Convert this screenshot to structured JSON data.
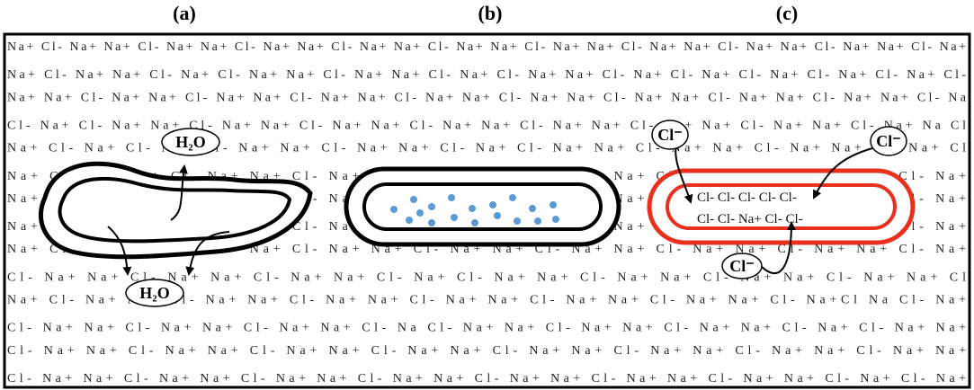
{
  "panels": [
    {
      "label": "(a)",
      "water_in": "H₂O",
      "water_out": "H₂O"
    },
    {
      "label": "(b)"
    },
    {
      "label": "(c)",
      "ions": [
        "Cl⁻",
        "Cl⁻",
        "Cl⁻"
      ],
      "inside": [
        "Cl-  Cl-     Cl-      Cl-  Cl-",
        "Cl-  Cl-      Na+     Cl-  Cl-"
      ]
    }
  ],
  "background": {
    "rows": [
      "Na+ Cl- Na+ Na+ Cl- Na+ Na+ Cl- Na+ Na+ Cl- Na+ Na+ Cl- Na+ Na+ Cl- Na+ Na+ Cl- Na+ Na+ Cl- Na+ Na+ Cl- Na+ Na+ Cl- Na+",
      "Na+ Cl- Na+ Na+ Cl- Na+ Cl- Na+ Na+ Cl- Na+ Na+ Cl- Na+ Cl- Na+ Na+ Cl- Na+ Cl- Na+ Cl- Na+ Cl- Na+ Cl- Na+ Cl-",
      "Na+ Na+ Cl- Na+ Na+ Cl- Na+ Na+ Cl- Na+ Na+ Cl- Na+ Na+ Cl- Na+ Na+ Cl- Na+ Na+ Cl- Na+ Na+ Cl- Na+ Na+ Cl- Na",
      "Cl- Na+ Cl- Na+ Na+ Cl- Na+ Na+ Cl- Na+ Na+ Cl- Na+ Na+ Cl- Na+ Na+ Cl- Na+ Na+ Cl- Na+ Na+ Cl- Na+ Na Cl",
      "Na+ Cl- Na+ Cl- Na+ Cl- Na+ Na+ Cl- Na+ Na+ Cl- Na+ Cl- Na+ Na+ Cl- Na+ Na+ Cl- Na+ Na+ Cl- Na+ Cl",
      "Na+ Cl- Na+ Na+ Cl- Na+ Na+ Cl- Na+ Na+ Cl- Na+ Na+ Cl- Na+ Na+ Cl- Na+ Na+ Cl- Na+ Na+ Cl- Na+",
      "Na+ Cl- Na+ Na+ Cl- Na+ Na+ Cl- Na+ Na+ Cl- Na+ Na+ Cl- Na+ Na+ Cl- Na+ Na+ Cl- Na+ Na+ Cl- Na+",
      "Na+ Cl- Na+ Na+ Cl- Na+ Na+ Cl- Na+ Na+ Cl- Na+ Na+ Cl- Na+ Na+ Cl- Na+ Na+ Cl- Na+ Na+ Cl- Na+",
      "Na+ Cl- Na+ Na+ Cl- Na+ Na+ Cl- Na+ Na+ Cl- Na+ Na+ Cl- Na+ Na+ Cl- Na+ Na+ Cl- Na+ Na+ Cl- Na+",
      "Cl- Na+ Na+ Cl- Na+ Na+ Cl- Na+ Na+ Cl- Na+ Cl- Na+ Na+ Cl- Na+ Na+ Cl- Na+ Na+ Cl- Na+ Na+ Cl",
      "Na+ Cl- Na+ Na+ Cl- Na+ Na+ Cl- Na+ Na+ Cl- Na+ Na+ Cl- Na+ Na+ Cl- Na+ Na+ Cl- Na+Cl Na Cl- Na+",
      "Cl- Na+ Na+ Cl- Na+ Na+ Cl- Na+ Na+ Cl- Na Cl- Na+ Na+ Cl- Na+ Na+ Cl- Na+ Na+ Cl- Na+ Cl- Na+ Na+",
      "Cl- Na+ Na+ Cl- Na+ Na+ Cl- Na+ Na+ Cl- Na+ Na+ Cl- Na+ Na+ Cl- Na+ Na+ Cl- Na+ Na+ Cl- Na+ Na+",
      "Cl- Na+ Na+ Cl- Na+ Na+ Cl- Na+ Na+ Cl- Na+ Na+ Cl- Na+ Na+ Cl- Na+ Na+ Cl- Na+ Na+ Cl- Na+ Cl- Na+"
    ]
  }
}
